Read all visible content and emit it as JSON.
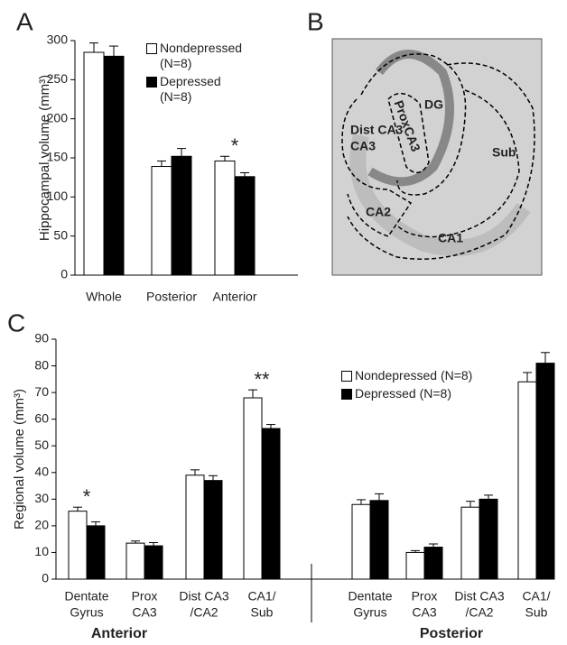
{
  "panel_labels": [
    "A",
    "B",
    "C"
  ],
  "image_panel": {
    "labels": [
      "DG",
      "ProxCA3",
      "Dist CA3",
      "Sub",
      "CA2",
      "CA1"
    ]
  },
  "chart_data": [
    {
      "type": "bar",
      "ylabel": "Hippocampal volume (mm³)",
      "categories": [
        [
          "Whole"
        ],
        [
          "Posterior"
        ],
        [
          "Anterior"
        ]
      ],
      "series": [
        {
          "name": "Nondepressed (N=8)",
          "color": "#ffffff",
          "values": [
            285,
            139,
            146
          ],
          "errors": [
            12,
            7,
            6
          ]
        },
        {
          "name": "Depressed (N=8)",
          "color": "#000000",
          "values": [
            280,
            152,
            126
          ],
          "errors": [
            13,
            10,
            5
          ]
        }
      ],
      "ylim": [
        0,
        300
      ],
      "yticks": [
        0,
        50,
        100,
        150,
        200,
        250,
        300
      ],
      "annotations": [
        {
          "text": "*",
          "category": 2
        }
      ]
    },
    {
      "type": "bar",
      "ylabel": "Regional volume (mm³)",
      "categories": [
        [
          "Dentate",
          "Gyrus"
        ],
        [
          "Prox",
          "CA3"
        ],
        [
          "Dist CA3",
          "/CA2"
        ],
        [
          "CA1/",
          "Sub"
        ],
        [
          "Dentate",
          "Gyrus"
        ],
        [
          "Prox",
          "CA3"
        ],
        [
          "Dist CA3",
          "/CA2"
        ],
        [
          "CA1/",
          "Sub"
        ]
      ],
      "groups": [
        "Anterior",
        "Posterior"
      ],
      "series": [
        {
          "name": "Nondepressed (N=8)",
          "color": "#ffffff",
          "values": [
            25.5,
            13.5,
            39,
            68,
            28,
            10,
            27,
            74
          ],
          "errors": [
            1.5,
            0.8,
            2,
            3,
            1.8,
            0.7,
            2.2,
            3.5
          ]
        },
        {
          "name": "Depressed (N=8)",
          "color": "#000000",
          "values": [
            20,
            12.5,
            37,
            56.5,
            29.5,
            12,
            30,
            81
          ],
          "errors": [
            1.5,
            1.2,
            1.8,
            1.5,
            2.5,
            1.2,
            1.5,
            4
          ]
        }
      ],
      "ylim": [
        0,
        90
      ],
      "yticks": [
        0,
        10,
        20,
        30,
        40,
        50,
        60,
        70,
        80,
        90
      ],
      "annotations": [
        {
          "text": "*",
          "category": 0
        },
        {
          "text": "**",
          "category": 3
        }
      ]
    }
  ]
}
